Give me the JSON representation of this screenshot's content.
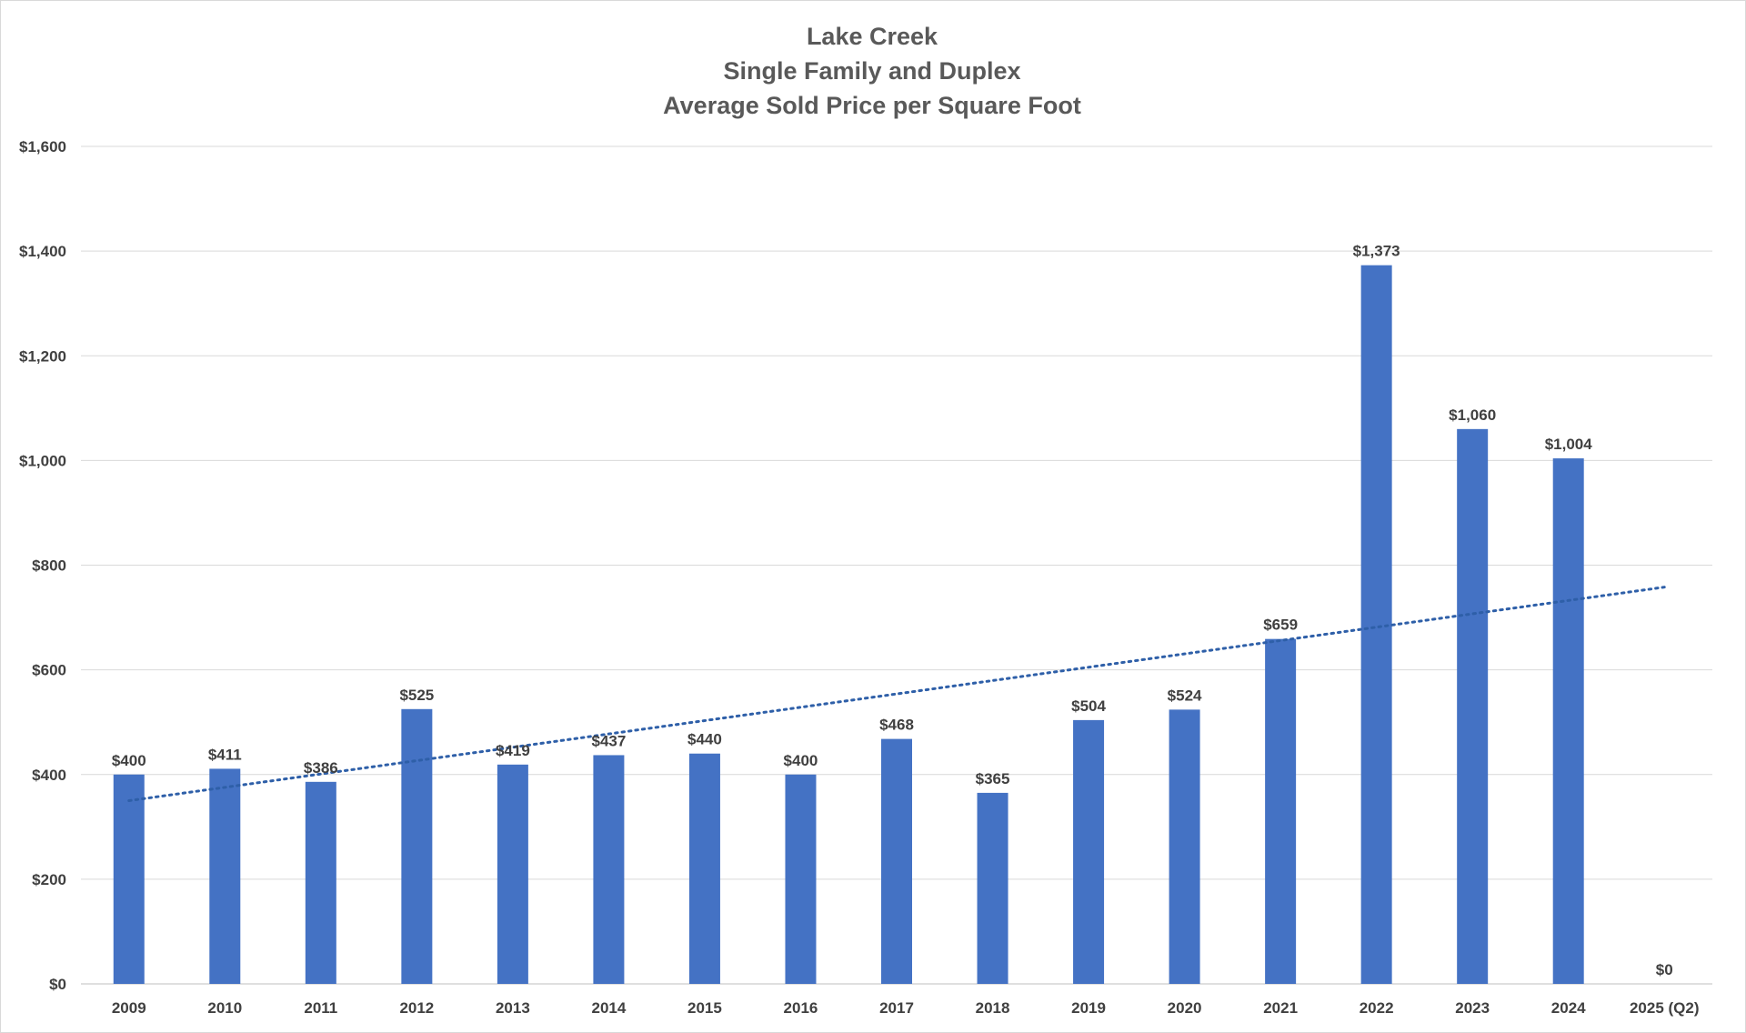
{
  "chart_data": {
    "type": "bar",
    "title": [
      "Lake Creek",
      "Single Family and Duplex",
      "Average Sold Price per Square Foot"
    ],
    "xlabel": "",
    "ylabel": "",
    "categories": [
      "2009",
      "2010",
      "2011",
      "2012",
      "2013",
      "2014",
      "2015",
      "2016",
      "2017",
      "2018",
      "2019",
      "2020",
      "2021",
      "2022",
      "2023",
      "2024",
      "2025 (Q2)"
    ],
    "values": [
      400,
      411,
      386,
      525,
      419,
      437,
      440,
      400,
      468,
      365,
      504,
      524,
      659,
      1373,
      1060,
      1004,
      0
    ],
    "data_labels": [
      "$400",
      "$411",
      "$386",
      "$525",
      "$419",
      "$437",
      "$440",
      "$400",
      "$468",
      "$365",
      "$504",
      "$524",
      "$659",
      "$1,373",
      "$1,060",
      "$1,004",
      "$0"
    ],
    "ylim": [
      0,
      1600
    ],
    "y_ticks": [
      0,
      200,
      400,
      600,
      800,
      1000,
      1200,
      1400,
      1600
    ],
    "y_tick_labels": [
      "$0",
      "$200",
      "$400",
      "$600",
      "$800",
      "$1,000",
      "$1,200",
      "$1,400",
      "$1,600"
    ],
    "grid": true,
    "legend": "none",
    "trendline": {
      "type": "linear",
      "style": "dotted",
      "start": 350,
      "end": 758
    },
    "colors": {
      "bar": "#4472C4",
      "trendline": "#2E5FA8",
      "grid": "#d9d9d9",
      "axis": "#bfbfbf",
      "text": "#404040",
      "title": "#595959"
    }
  }
}
